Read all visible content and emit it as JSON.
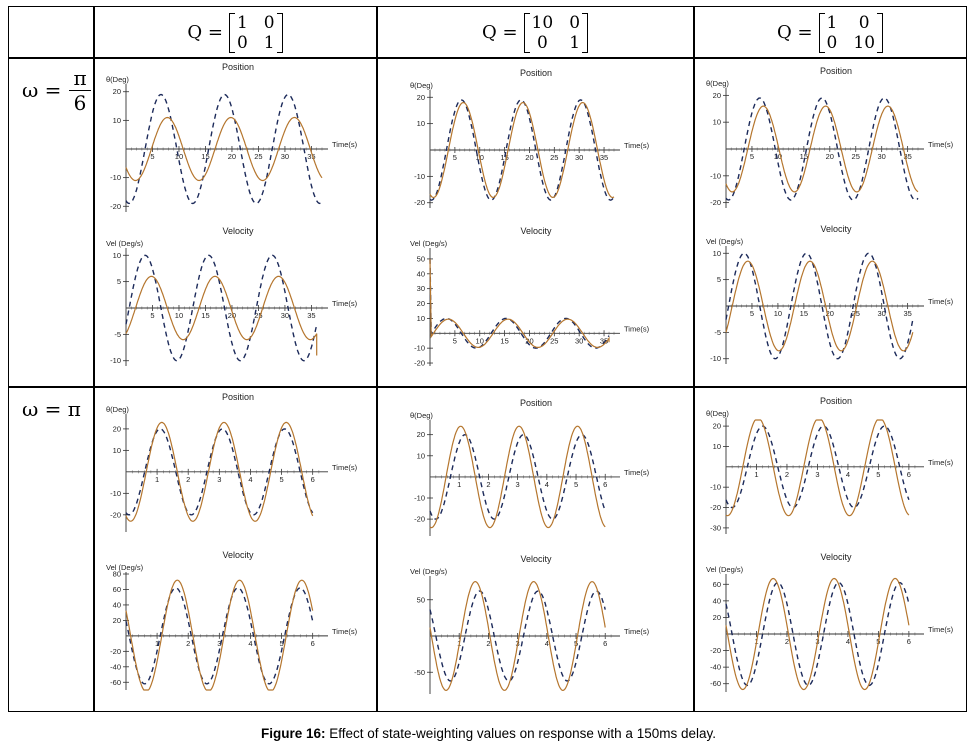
{
  "header": {
    "col1": {
      "q_label": "Q =",
      "matrix": [
        [
          "1",
          "0"
        ],
        [
          "0",
          "1"
        ]
      ]
    },
    "col2": {
      "q_label": "Q =",
      "matrix": [
        [
          "10",
          "0"
        ],
        [
          "0",
          "1"
        ]
      ]
    },
    "col3": {
      "q_label": "Q =",
      "matrix": [
        [
          "1",
          "0"
        ],
        [
          "0",
          "10"
        ]
      ]
    }
  },
  "rows": {
    "row1": {
      "label": "ω =",
      "num": "π",
      "den": "6"
    },
    "row2": {
      "label": "ω = π"
    }
  },
  "caption": {
    "bold": "Figure 16:",
    "text": " Effect of state-weighting values on response with a 150ms delay."
  },
  "colors": {
    "solid": "#b5762e",
    "dashed": "#1c2a5a"
  },
  "chart_data": [
    {
      "id": "r1c1-pos",
      "type": "line",
      "title": "Position",
      "ylabel": "θ(Deg)",
      "xlabel": "Time(s)",
      "xlim": [
        0,
        37
      ],
      "ylim": [
        -22,
        22
      ],
      "xticks": [
        5,
        10,
        15,
        20,
        25,
        30,
        35
      ],
      "yticks": [
        -20,
        -10,
        10,
        20
      ],
      "series": [
        {
          "style": "dashed",
          "expr": "-19*cos(0.5236*(t-0.6))",
          "end": 37
        },
        {
          "style": "solid",
          "expr": "-11*cos(0.5236*(t-1.8))",
          "end": 37
        }
      ]
    },
    {
      "id": "r1c2-pos",
      "type": "line",
      "title": "Position",
      "ylabel": "θ(Deg)",
      "xlabel": "Time(s)",
      "xlim": [
        0,
        37
      ],
      "ylim": [
        -22,
        22
      ],
      "xticks": [
        5,
        10,
        15,
        20,
        25,
        30,
        35
      ],
      "yticks": [
        -20,
        -10,
        10,
        20
      ],
      "series": [
        {
          "style": "dashed",
          "expr": "-19*cos(0.5236*(t-0.3))",
          "end": 37
        },
        {
          "style": "solid",
          "expr": "-18*cos(0.5236*(t-0.7))",
          "end": 37
        }
      ]
    },
    {
      "id": "r1c3-pos",
      "type": "line",
      "title": "Position",
      "ylabel": "θ(Deg)",
      "xlabel": "Time(s)",
      "xlim": [
        0,
        37
      ],
      "ylim": [
        -22,
        22
      ],
      "xticks": [
        5,
        10,
        15,
        20,
        25,
        30,
        35
      ],
      "yticks": [
        -20,
        -10,
        10,
        20
      ],
      "series": [
        {
          "style": "dashed",
          "expr": "-19*cos(0.5236*(t-0.5))",
          "end": 37
        },
        {
          "style": "solid",
          "expr": "-16*cos(0.5236*(t-1.2))",
          "end": 37
        }
      ]
    },
    {
      "id": "r1c1-vel",
      "type": "line",
      "title": "Velocity",
      "ylabel": "Vel (Deg/s)",
      "xlabel": "Time(s)",
      "xlim": [
        0,
        37
      ],
      "ylim": [
        -11,
        11
      ],
      "xticks": [
        5,
        10,
        15,
        20,
        25,
        30,
        35
      ],
      "yticks": [
        -10,
        -5,
        5,
        10
      ],
      "series": [
        {
          "style": "dashed",
          "expr": "10*sin(0.5236*(t-0.6))",
          "end": 36
        },
        {
          "style": "solid",
          "expr": "6*sin(0.5236*(t-1.8))",
          "end": 36,
          "tail": -9
        }
      ]
    },
    {
      "id": "r1c2-vel",
      "type": "line",
      "title": "Velocity",
      "ylabel": "Vel (Deg/s)",
      "xlabel": "Time(s)",
      "xlim": [
        0,
        37
      ],
      "ylim": [
        -22,
        56
      ],
      "xticks": [
        5,
        10,
        15,
        20,
        25,
        30,
        35
      ],
      "yticks": [
        -20,
        -10,
        10,
        20,
        30,
        40,
        50
      ],
      "series": [
        {
          "style": "dashed",
          "expr": "10*sin(0.5236*(t-0.3))",
          "end": 36,
          "spike": 50
        },
        {
          "style": "solid",
          "expr": "9.5*sin(0.5236*(t-0.7))",
          "end": 36,
          "spike": 50,
          "tail": -6
        }
      ]
    },
    {
      "id": "r1c3-vel",
      "type": "line",
      "title": "Velocity",
      "ylabel": "Vel (Deg/s)",
      "xlabel": "Time(s)",
      "xlim": [
        0,
        37
      ],
      "ylim": [
        -11,
        11
      ],
      "xticks": [
        5,
        10,
        15,
        20,
        25,
        30,
        35
      ],
      "yticks": [
        -10,
        -5,
        5,
        10
      ],
      "series": [
        {
          "style": "dashed",
          "expr": "10*sin(0.5236*(t-0.5))",
          "end": 36
        },
        {
          "style": "solid",
          "expr": "8.5*sin(0.5236*(t-1.2))",
          "end": 36,
          "tail": -5
        }
      ]
    },
    {
      "id": "r2c1-pos",
      "type": "line",
      "title": "Position",
      "ylabel": "θ(Deg)",
      "xlabel": "Time(s)",
      "xlim": [
        0,
        6.3
      ],
      "ylim": [
        -28,
        26
      ],
      "xticks": [
        1,
        2,
        3,
        4,
        5,
        6
      ],
      "yticks": [
        -20,
        -10,
        10,
        20
      ],
      "series": [
        {
          "style": "dashed",
          "expr": "-20*cos(3.1416*(t-0.1))",
          "end": 6
        },
        {
          "style": "solid",
          "expr": "-23*cos(3.1416*(t-0.15))",
          "end": 6
        }
      ]
    },
    {
      "id": "r2c2-pos",
      "type": "line",
      "title": "Position",
      "ylabel": "θ(Deg)",
      "xlabel": "Time(s)",
      "xlim": [
        0,
        6.3
      ],
      "ylim": [
        -28,
        26
      ],
      "xticks": [
        1,
        2,
        3,
        4,
        5,
        6
      ],
      "yticks": [
        -20,
        -10,
        10,
        20
      ],
      "series": [
        {
          "style": "dashed",
          "expr": "-20*cos(3.1416*(t-0.2))",
          "end": 6
        },
        {
          "style": "solid",
          "expr": "-24*cos(3.1416*(t-0.05))",
          "end": 6
        }
      ]
    },
    {
      "id": "r2c3-pos",
      "type": "line",
      "title": "Position",
      "ylabel": "θ(Deg)",
      "xlabel": "Time(s)",
      "xlim": [
        0,
        6.3
      ],
      "ylim": [
        -33,
        23
      ],
      "xticks": [
        1,
        2,
        3,
        4,
        5,
        6
      ],
      "yticks": [
        -30,
        -20,
        -10,
        10,
        20
      ],
      "series": [
        {
          "style": "dashed",
          "expr": "-20*cos(3.1416*(t-0.2))",
          "end": 6
        },
        {
          "style": "solid",
          "expr": "-24*cos(3.1416*(t-0.05))",
          "end": 6
        }
      ]
    },
    {
      "id": "r2c1-vel",
      "type": "line",
      "title": "Velocity",
      "ylabel": "Vel (Deg/s)",
      "xlabel": "Time(s)",
      "xlim": [
        0,
        6.3
      ],
      "ylim": [
        -70,
        80
      ],
      "xticks": [
        1,
        2,
        3,
        4,
        5,
        6
      ],
      "yticks": [
        -60,
        -40,
        -20,
        20,
        40,
        60,
        80
      ],
      "series": [
        {
          "style": "dashed",
          "expr": "-62*sin(3.1416*(t-0.1))",
          "end": 6
        },
        {
          "style": "solid",
          "expr": "-72*sin(3.1416*(t-0.15))",
          "end": 6
        }
      ]
    },
    {
      "id": "r2c2-vel",
      "type": "line",
      "title": "Velocity",
      "ylabel": "Vel (Deg/s)",
      "xlabel": "Time(s)",
      "xlim": [
        0,
        6.3
      ],
      "ylim": [
        -80,
        80
      ],
      "xticks": [
        1,
        2,
        3,
        4,
        5,
        6
      ],
      "yticks": [
        -50,
        50
      ],
      "series": [
        {
          "style": "dashed",
          "expr": "-62*sin(3.1416*(t-0.2))",
          "end": 6
        },
        {
          "style": "solid",
          "expr": "-75*sin(3.1416*(t-0.05))",
          "end": 6
        }
      ]
    },
    {
      "id": "r2c3-vel",
      "type": "line",
      "title": "Velocity",
      "ylabel": "Vel (Deg/s)",
      "xlabel": "Time(s)",
      "xlim": [
        0,
        6.3
      ],
      "ylim": [
        -70,
        70
      ],
      "xticks": [
        1,
        2,
        3,
        4,
        5,
        6
      ],
      "yticks": [
        -60,
        -40,
        -20,
        20,
        40,
        60
      ],
      "series": [
        {
          "style": "dashed",
          "expr": "-62*sin(3.1416*(t-0.2))",
          "end": 6
        },
        {
          "style": "solid",
          "expr": "-67*sin(3.1416*(t-0.05))",
          "end": 6
        }
      ]
    }
  ]
}
